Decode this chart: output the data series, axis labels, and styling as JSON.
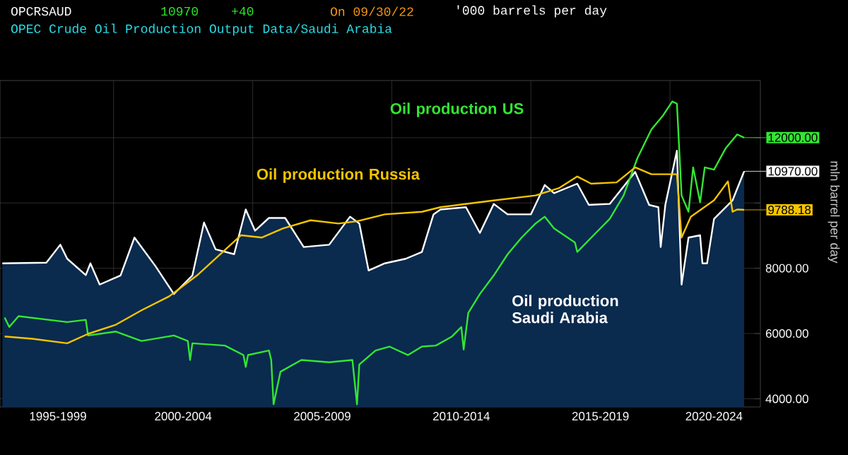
{
  "chart_data": {
    "type": "line",
    "title": "OPEC Crude Oil Production Output Data/Saudi Arabia",
    "subtitle": "'000 barrels per day",
    "ylabel": "mln barrel per day",
    "annotations": [
      "OPCRSAUD",
      "10970",
      "+40",
      "On 09/30/22",
      {
        "text": "12000.00",
        "x": "2022-09",
        "y": 12000
      },
      {
        "text": "10970.00",
        "x": "2022-09",
        "y": 10970
      },
      {
        "text": "9788.18",
        "x": "2022-09",
        "y": 9788.18
      }
    ],
    "xlim": [
      "1995-12",
      "2023-04"
    ],
    "xticks": [
      {
        "value": "1998-01",
        "label": "1995-1999"
      },
      {
        "value": "2002-07",
        "label": "2000-2004"
      },
      {
        "value": "2007-07",
        "label": "2005-2009"
      },
      {
        "value": "2012-07",
        "label": "2010-2014"
      },
      {
        "value": "2017-07",
        "label": "2015-2019"
      },
      {
        "value": "2021-08",
        "label": "2020-2024"
      },
      {
        "value": "2000-01",
        "label": null
      },
      {
        "value": "2005-01",
        "label": null
      },
      {
        "value": "2010-01",
        "label": null
      },
      {
        "value": "2015-01",
        "label": null
      },
      {
        "value": "2020-01",
        "label": null
      }
    ],
    "ylim": [
      3750,
      13750
    ],
    "yticks": [
      {
        "value": 4000,
        "label": "4000.00"
      },
      {
        "value": 6000,
        "label": "6000.00"
      },
      {
        "value": 8000,
        "label": "8000.00"
      },
      {
        "value": 10000,
        "label": null
      },
      {
        "value": 12000,
        "label": null
      }
    ],
    "grid": true,
    "series": [
      {
        "name": "Oil production US",
        "color": "#33e633",
        "x": [
          "1996-02",
          "1996-04",
          "1996-08",
          "1998-05",
          "1999-01",
          "1999-02",
          "2000-02",
          "2001-01",
          "2002-03",
          "2002-09",
          "2002-10",
          "2002-11",
          "2004-01",
          "2004-09",
          "2004-10",
          "2004-11",
          "2005-08",
          "2005-09",
          "2005-10",
          "2006-01",
          "2006-10",
          "2007-10",
          "2008-08",
          "2008-10",
          "2008-11",
          "2009-06",
          "2009-12",
          "2010-08",
          "2011-02",
          "2011-08",
          "2012-03",
          "2012-07",
          "2012-08",
          "2012-10",
          "2013-03",
          "2013-09",
          "2014-03",
          "2014-09",
          "2015-03",
          "2015-07",
          "2015-11",
          "2016-08",
          "2016-09",
          "2017-05",
          "2017-11",
          "2018-05",
          "2018-11",
          "2019-05",
          "2019-10",
          "2020-02",
          "2020-04",
          "2020-06",
          "2020-09",
          "2020-11",
          "2021-02",
          "2021-04",
          "2021-08",
          "2022-01",
          "2022-06",
          "2022-09"
        ],
        "values": [
          6490,
          6200,
          6530,
          6350,
          6420,
          5940,
          6060,
          5770,
          5940,
          5770,
          5190,
          5700,
          5630,
          5340,
          4980,
          5340,
          5480,
          5190,
          3830,
          4830,
          5190,
          5120,
          5190,
          3830,
          5050,
          5480,
          5600,
          5340,
          5600,
          5630,
          5910,
          6200,
          5510,
          6630,
          7210,
          7780,
          8430,
          8940,
          9370,
          9580,
          9220,
          8790,
          8500,
          9080,
          9510,
          10230,
          11380,
          12250,
          12680,
          13110,
          13040,
          10230,
          9730,
          11090,
          10020,
          11090,
          11020,
          11670,
          12100,
          12000
        ]
      },
      {
        "name": "Oil production Saudi Arabia",
        "type": "area",
        "color": "#ffffff",
        "x": [
          "1996-01",
          "1997-08",
          "1998-02",
          "1998-05",
          "1999-01",
          "1999-03",
          "1999-07",
          "2000-04",
          "2000-10",
          "2001-07",
          "2002-03",
          "2002-11",
          "2003-04",
          "2003-09",
          "2004-05",
          "2004-10",
          "2005-02",
          "2005-08",
          "2006-03",
          "2006-11",
          "2007-10",
          "2008-07",
          "2008-11",
          "2009-03",
          "2009-10",
          "2010-07",
          "2011-02",
          "2011-07",
          "2011-10",
          "2012-09",
          "2013-03",
          "2013-09",
          "2014-03",
          "2015-01",
          "2015-07",
          "2015-11",
          "2016-09",
          "2017-02",
          "2017-11",
          "2018-10",
          "2019-04",
          "2019-08",
          "2019-09",
          "2019-11",
          "2020-04",
          "2020-06",
          "2020-09",
          "2021-02",
          "2021-03",
          "2021-05",
          "2021-08",
          "2022-04",
          "2022-09"
        ],
        "values": [
          8150,
          8170,
          8720,
          8290,
          7790,
          8150,
          7500,
          7780,
          8940,
          8070,
          7210,
          7780,
          9400,
          8580,
          8430,
          9800,
          9150,
          9540,
          9540,
          8650,
          8720,
          9580,
          9370,
          7930,
          8150,
          8290,
          8500,
          9650,
          9800,
          9870,
          9080,
          9970,
          9650,
          9650,
          10550,
          10300,
          10590,
          9940,
          9970,
          10950,
          9940,
          9870,
          8650,
          9940,
          11600,
          7500,
          8940,
          9010,
          8150,
          8150,
          9510,
          10080,
          10970
        ]
      },
      {
        "name": "Oil production Russia",
        "color": "#f5c400",
        "x": [
          "1996-02",
          "1997-02",
          "1998-05",
          "1999-02",
          "2000-02",
          "2001-01",
          "2002-01",
          "2003-01",
          "2003-11",
          "2004-08",
          "2005-05",
          "2006-02",
          "2007-02",
          "2008-02",
          "2008-10",
          "2009-10",
          "2011-02",
          "2011-10",
          "2013-07",
          "2015-03",
          "2016-01",
          "2016-09",
          "2017-03",
          "2018-02",
          "2018-10",
          "2019-05",
          "2020-04",
          "2020-06",
          "2020-10",
          "2021-08",
          "2022-02",
          "2022-04",
          "2022-06",
          "2022-09"
        ],
        "values": [
          5910,
          5840,
          5700,
          5990,
          6270,
          6710,
          7140,
          7780,
          8430,
          9010,
          8940,
          9220,
          9470,
          9370,
          9440,
          9650,
          9730,
          9870,
          10060,
          10230,
          10450,
          10810,
          10590,
          10630,
          11090,
          10880,
          10880,
          8940,
          9580,
          10080,
          10660,
          9730,
          9800,
          9788.18
        ]
      }
    ]
  }
}
